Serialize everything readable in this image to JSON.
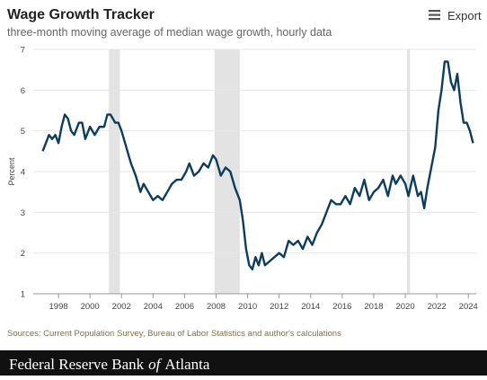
{
  "chart_data": {
    "type": "line",
    "title": "Wage Growth Tracker",
    "subtitle": "three-month moving average of median wage growth, hourly data",
    "y_label": "Percent",
    "color": "#0d3d5e",
    "x": [
      1997.0,
      1997.2,
      1997.4,
      1997.6,
      1997.8,
      1998.0,
      1998.2,
      1998.4,
      1998.6,
      1998.8,
      1999.0,
      1999.3,
      1999.5,
      1999.7,
      2000.0,
      2000.3,
      2000.6,
      2000.9,
      2001.1,
      2001.3,
      2001.6,
      2001.8,
      2002.0,
      2002.3,
      2002.6,
      2002.9,
      2003.2,
      2003.4,
      2003.7,
      2004.0,
      2004.3,
      2004.6,
      2004.9,
      2005.2,
      2005.5,
      2005.8,
      2006.1,
      2006.3,
      2006.6,
      2006.9,
      2007.2,
      2007.5,
      2007.8,
      2008.0,
      2008.3,
      2008.6,
      2008.9,
      2009.2,
      2009.5,
      2009.7,
      2009.9,
      2010.1,
      2010.3,
      2010.5,
      2010.7,
      2010.9,
      2011.1,
      2011.4,
      2011.7,
      2012.0,
      2012.3,
      2012.6,
      2012.9,
      2013.2,
      2013.5,
      2013.8,
      2014.1,
      2014.4,
      2014.7,
      2015.0,
      2015.3,
      2015.6,
      2015.9,
      2016.2,
      2016.5,
      2016.8,
      2017.1,
      2017.4,
      2017.7,
      2018.0,
      2018.3,
      2018.6,
      2018.9,
      2019.2,
      2019.4,
      2019.7,
      2020.0,
      2020.2,
      2020.5,
      2020.8,
      2021.0,
      2021.2,
      2021.4,
      2021.7,
      2021.9,
      2022.1,
      2022.3,
      2022.5,
      2022.7,
      2022.9,
      2023.1,
      2023.3,
      2023.5,
      2023.7,
      2023.9,
      2024.1,
      2024.3
    ],
    "values": [
      4.5,
      4.7,
      4.9,
      4.8,
      4.9,
      4.7,
      5.1,
      5.4,
      5.3,
      5.0,
      4.9,
      5.2,
      5.2,
      4.8,
      5.1,
      4.9,
      5.1,
      5.1,
      5.4,
      5.4,
      5.2,
      5.2,
      5.0,
      4.6,
      4.2,
      3.9,
      3.5,
      3.7,
      3.5,
      3.3,
      3.4,
      3.3,
      3.5,
      3.7,
      3.8,
      3.8,
      4.0,
      4.2,
      3.9,
      4.0,
      4.2,
      4.1,
      4.4,
      4.3,
      3.9,
      4.1,
      4.0,
      3.6,
      3.3,
      2.8,
      2.1,
      1.7,
      1.6,
      1.9,
      1.7,
      2.0,
      1.7,
      1.8,
      1.9,
      2.0,
      1.9,
      2.3,
      2.2,
      2.3,
      2.1,
      2.4,
      2.2,
      2.5,
      2.7,
      3.0,
      3.3,
      3.2,
      3.2,
      3.4,
      3.2,
      3.6,
      3.4,
      3.8,
      3.3,
      3.5,
      3.6,
      3.8,
      3.4,
      3.9,
      3.7,
      3.9,
      3.7,
      3.4,
      3.9,
      3.4,
      3.5,
      3.1,
      3.6,
      4.2,
      4.6,
      5.5,
      6.0,
      6.7,
      6.7,
      6.2,
      6.0,
      6.4,
      5.7,
      5.2,
      5.2,
      5.0,
      4.7
    ],
    "recessions": [
      [
        2001.2,
        2001.9
      ],
      [
        2007.9,
        2009.5
      ],
      [
        2020.1,
        2020.3
      ]
    ],
    "xlim": [
      1996.4,
      2024.5
    ],
    "xticks": [
      1998,
      2000,
      2002,
      2004,
      2006,
      2008,
      2010,
      2012,
      2014,
      2016,
      2018,
      2020,
      2022,
      2024
    ],
    "ylim": [
      1,
      7
    ],
    "yticks": [
      1,
      2,
      3,
      4,
      5,
      6,
      7
    ],
    "grid": true
  },
  "export_label": "Export",
  "source": "Sources: Current Population Survey, Bureau of Labor Statistics and author's calculations",
  "footer": {
    "before": "Federal Reserve Bank",
    "italic": "of",
    "after": "Atlanta"
  }
}
